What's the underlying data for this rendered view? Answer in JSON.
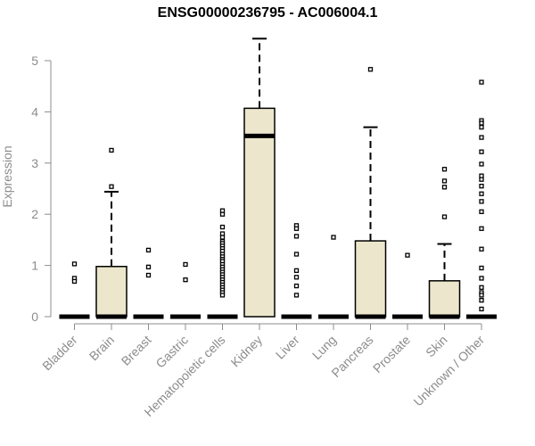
{
  "chart_data": {
    "type": "box",
    "title": "ENSG00000236795 - AC006004.1",
    "xlabel": "",
    "ylabel": "Expression",
    "ylim": [
      0,
      5
    ],
    "yticks": [
      0,
      1,
      2,
      3,
      4,
      5
    ],
    "grid": false,
    "colors": {
      "box_fill": "#ece6cc",
      "box_stroke": "#000000",
      "axis": "#8c8c8c"
    },
    "categories": [
      "Bladder",
      "Brain",
      "Breast",
      "Gastric",
      "Hematopoietic cells",
      "Kidney",
      "Liver",
      "Lung",
      "Pancreas",
      "Prostate",
      "Skin",
      "Unknown / Other"
    ],
    "boxes": [
      {
        "category": "Bladder",
        "min": 0,
        "q1": 0,
        "median": 0,
        "q3": 0,
        "max": 0,
        "outliers": [
          1.03,
          0.75,
          0.69
        ]
      },
      {
        "category": "Brain",
        "min": 0,
        "q1": 0,
        "median": 0,
        "q3": 0.98,
        "max": 2.44,
        "outliers": [
          3.25,
          2.54
        ]
      },
      {
        "category": "Breast",
        "min": 0,
        "q1": 0,
        "median": 0,
        "q3": 0,
        "max": 0,
        "outliers": [
          1.3,
          0.97,
          0.81
        ]
      },
      {
        "category": "Gastric",
        "min": 0,
        "q1": 0,
        "median": 0,
        "q3": 0,
        "max": 0,
        "outliers": [
          1.02,
          0.72
        ]
      },
      {
        "category": "Hematopoietic cells",
        "min": 0,
        "q1": 0,
        "median": 0,
        "q3": 0,
        "max": 0,
        "outliers": [
          2.07,
          2.0,
          1.75,
          1.62,
          1.55,
          1.47,
          1.43,
          1.38,
          1.33,
          1.28,
          1.22,
          1.17,
          1.12,
          1.08,
          1.02,
          0.97,
          0.92,
          0.87,
          0.82,
          0.77,
          0.72,
          0.67,
          0.62,
          0.57,
          0.52,
          0.47,
          0.42
        ]
      },
      {
        "category": "Kidney",
        "min": 0,
        "q1": 0,
        "median": 3.53,
        "q3": 4.07,
        "max": 5.43,
        "outliers": []
      },
      {
        "category": "Liver",
        "min": 0,
        "q1": 0,
        "median": 0,
        "q3": 0,
        "max": 0,
        "outliers": [
          1.78,
          1.72,
          1.57,
          1.22,
          0.9,
          0.77,
          0.6,
          0.42
        ]
      },
      {
        "category": "Lung",
        "min": 0,
        "q1": 0,
        "median": 0,
        "q3": 0,
        "max": 0,
        "outliers": [
          1.55
        ]
      },
      {
        "category": "Pancreas",
        "min": 0,
        "q1": 0,
        "median": 0,
        "q3": 1.48,
        "max": 3.7,
        "outliers": [
          4.83
        ]
      },
      {
        "category": "Prostate",
        "min": 0,
        "q1": 0,
        "median": 0,
        "q3": 0,
        "max": 0,
        "outliers": [
          1.2
        ]
      },
      {
        "category": "Skin",
        "min": 0,
        "q1": 0,
        "median": 0,
        "q3": 0.7,
        "max": 1.42,
        "outliers": [
          2.88,
          2.65,
          2.53,
          1.95
        ]
      },
      {
        "category": "Unknown / Other",
        "min": 0,
        "q1": 0,
        "median": 0,
        "q3": 0,
        "max": 0,
        "outliers": [
          4.58,
          3.83,
          3.78,
          3.7,
          3.5,
          3.22,
          2.98,
          2.75,
          2.68,
          2.55,
          2.4,
          2.25,
          2.05,
          1.72,
          1.32,
          0.95,
          0.75,
          0.57,
          0.47,
          0.42,
          0.32,
          0.15
        ]
      }
    ]
  }
}
